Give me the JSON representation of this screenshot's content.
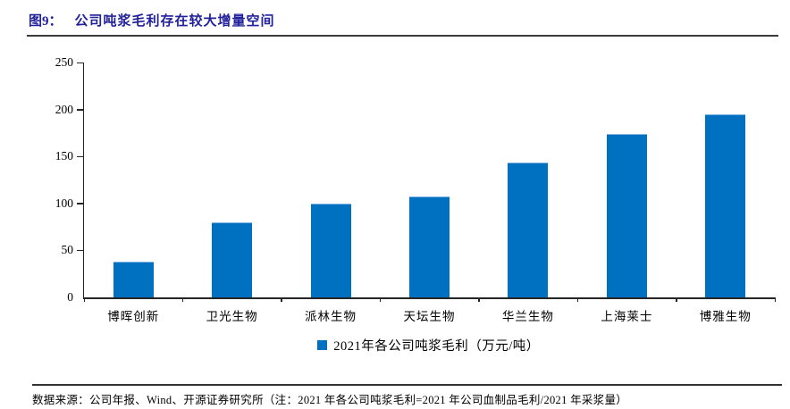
{
  "figure": {
    "label": "图9：",
    "title": "公司吨浆毛利存在较大增量空间"
  },
  "chart_data": {
    "type": "bar",
    "categories": [
      "博晖创新",
      "卫光生物",
      "派林生物",
      "天坛生物",
      "华兰生物",
      "上海莱士",
      "博雅生物"
    ],
    "values": [
      38,
      80,
      100,
      107,
      144,
      174,
      195
    ],
    "title": "公司吨浆毛利存在较大增量空间",
    "xlabel": "",
    "ylabel": "",
    "ylim": [
      0,
      250
    ],
    "yticks": [
      0,
      50,
      100,
      150,
      200,
      250
    ],
    "legend": "2021年各公司吨浆毛利（万元/吨）",
    "legend_position": "bottom",
    "grid": false,
    "bar_color": "#0070C0"
  },
  "footer": {
    "source": "数据来源：公司年报、Wind、开源证券研究所（注：2021 年各公司吨浆毛利=2021 年公司血制品毛利/2021 年采浆量）"
  },
  "colors": {
    "title": "#21219B",
    "bar": "#0070C0",
    "axis": "#262626",
    "rule": "#3a3a3a"
  }
}
